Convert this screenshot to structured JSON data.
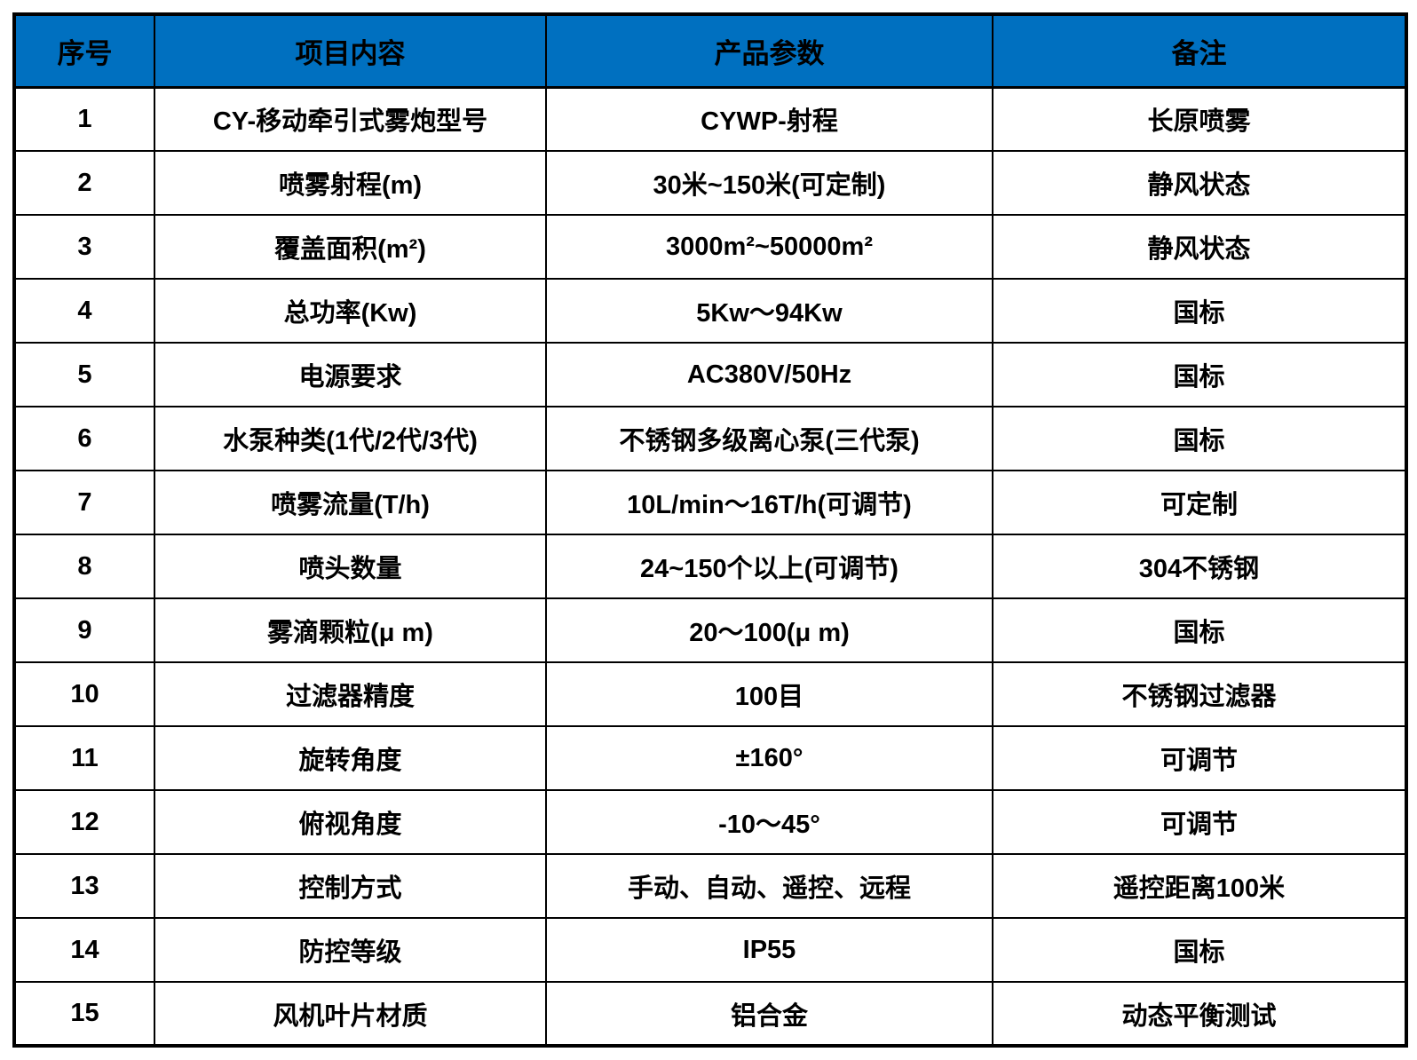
{
  "table": {
    "headers": [
      "序号",
      "项目内容",
      "产品参数",
      "备注"
    ],
    "rows": [
      [
        "1",
        "CY-移动牵引式雾炮型号",
        "CYWP-射程",
        "长原喷雾"
      ],
      [
        "2",
        "喷雾射程(m)",
        "30米~150米(可定制)",
        "静风状态"
      ],
      [
        "3",
        "覆盖面积(m²)",
        "3000m²~50000m²",
        "静风状态"
      ],
      [
        "4",
        "总功率(Kw)",
        "5Kw～94Kw",
        "国标"
      ],
      [
        "5",
        "电源要求",
        "AC380V/50Hz",
        "国标"
      ],
      [
        "6",
        "水泵种类(1代/2代/3代)",
        "不锈钢多级离心泵(三代泵)",
        "国标"
      ],
      [
        "7",
        "喷雾流量(T/h)",
        "10L/min～16T/h(可调节)",
        "可定制"
      ],
      [
        "8",
        "喷头数量",
        "24~150个以上(可调节)",
        "304不锈钢"
      ],
      [
        "9",
        "雾滴颗粒(μ m)",
        "20～100(μ m)",
        "国标"
      ],
      [
        "10",
        "过滤器精度",
        "100目",
        "不锈钢过滤器"
      ],
      [
        "11",
        "旋转角度",
        "±160°",
        "可调节"
      ],
      [
        "12",
        "俯视角度",
        "-10～45°",
        "可调节"
      ],
      [
        "13",
        "控制方式",
        "手动、自动、遥控、远程",
        "遥控距离100米"
      ],
      [
        "14",
        "防控等级",
        "IP55",
        "国标"
      ],
      [
        "15",
        "风机叶片材质",
        "铝合金",
        "动态平衡测试"
      ]
    ],
    "header_bg_color": "#0070C0",
    "border_color": "#000000",
    "text_color": "#000000"
  }
}
